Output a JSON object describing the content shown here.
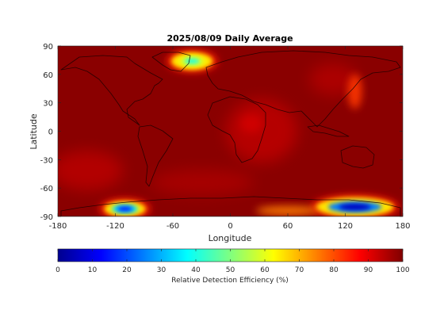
{
  "chart_data": {
    "type": "heatmap",
    "title": "2025/08/09 Daily Average",
    "xlabel": "Longitude",
    "ylabel": "Latitude",
    "xlim": [
      -180,
      180
    ],
    "ylim": [
      -90,
      90
    ],
    "x_ticks": [
      -180,
      -120,
      -60,
      0,
      60,
      120,
      180
    ],
    "y_ticks": [
      90,
      60,
      30,
      0,
      -30,
      -60,
      -90
    ],
    "grid": false,
    "background_value": 100,
    "colormap": "jet",
    "colorbar": {
      "label": "Relative Detection Efficiency (%)",
      "range": [
        0,
        100
      ],
      "ticks": [
        0,
        10,
        20,
        30,
        40,
        50,
        60,
        70,
        80,
        90,
        100
      ],
      "placement": "bottom"
    },
    "features": [
      {
        "lon": -40,
        "lat": 74,
        "value": 40
      },
      {
        "lon": 130,
        "lat": 42,
        "value": 82
      },
      {
        "lon": 22,
        "lat": 8,
        "value": 92
      },
      {
        "lon": -110,
        "lat": -82,
        "value": 15
      },
      {
        "lon": 130,
        "lat": -80,
        "value": 5
      },
      {
        "lon": 60,
        "lat": -84,
        "value": 75
      }
    ]
  }
}
